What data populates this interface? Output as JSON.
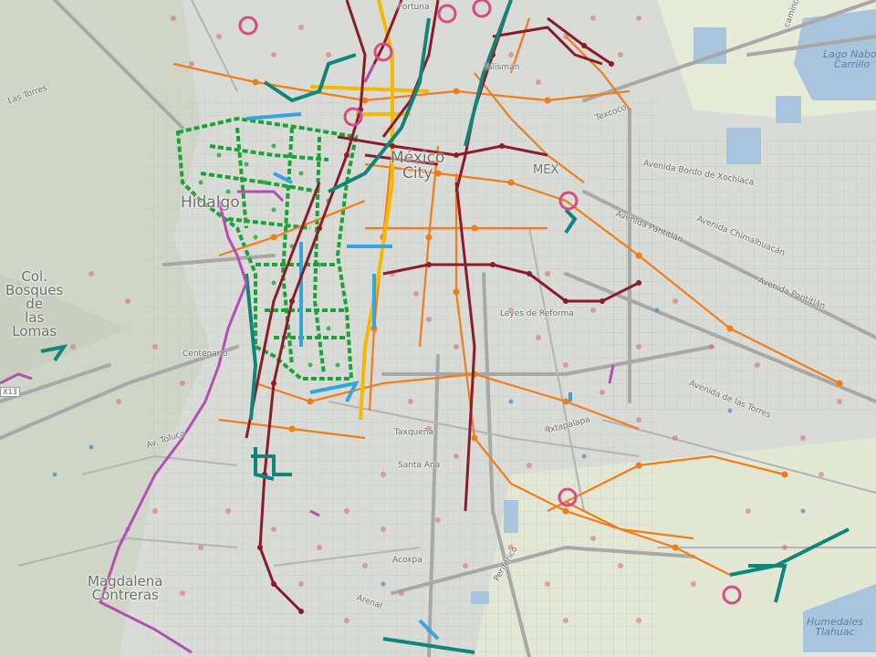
{
  "map": {
    "place_labels": {
      "bosques": "Col.\nBosques\nde\nlas\nLomas",
      "magdalena": "Magdalena\nContreras",
      "hidalgo": "Hidalgo",
      "mexico_city": "México\nCity",
      "mex": "MEX"
    },
    "street_labels": {
      "las_torres_nw": "Las Torres",
      "centenario": "Centenario",
      "av_toluca": "Av. Toluca",
      "taxquena": "Taxqueña",
      "santa_ana": "Santa Ana",
      "acoxpa": "Acoxpa",
      "arenal": "Arenal",
      "periferico": "Periférico",
      "ixtapalapa": "Ixtapalapa",
      "talisman": "Talismán",
      "texcoco": "Texcoco",
      "fortuna": "Fortuna",
      "leyes_reforma": "Leyes de Reforma",
      "bordo_xochiaca": "Avenida Bordo de Xochiaca",
      "pantitlan1": "Avenida Pantitlán",
      "chimalhuacan": "Avenida Chimalhuacán",
      "pantitlan2": "Avenida Pantitlán",
      "av_las_torres": "Avenida de las Torres",
      "camino": "camino"
    },
    "water_labels": {
      "lago_nabor": "Lago Nabor\nCarrillo",
      "humedales": "Humedales\nTlahuac"
    },
    "badges": {
      "x13": "X13"
    },
    "colors": {
      "metro_red": "#8b1a2b",
      "bus_orange": "#f07d1a",
      "trolley_teal": "#12857a",
      "green_network": "#1aa335",
      "yellow_line": "#f6b800",
      "blue_line": "#33a6e0",
      "purple_line": "#b34fb0",
      "stop_pink": "#d64b86",
      "dot_red": "#d76a6a"
    }
  }
}
